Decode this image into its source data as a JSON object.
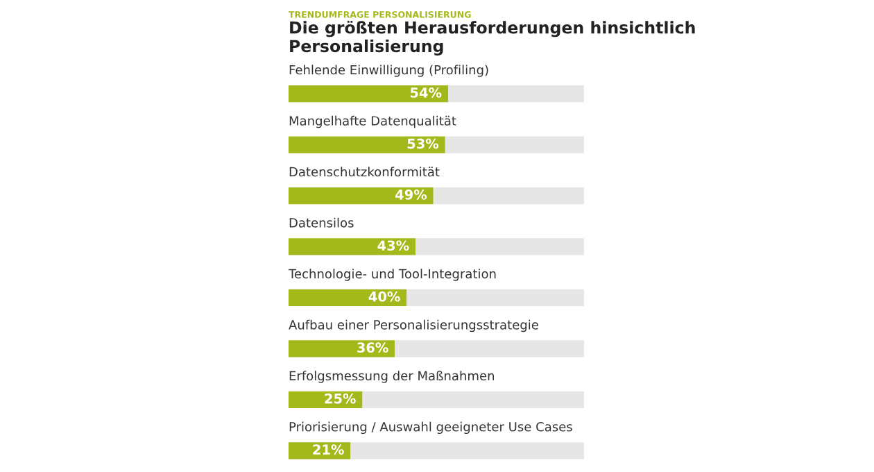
{
  "chart_data": {
    "type": "bar",
    "orientation": "horizontal",
    "stacked": true,
    "subtitle": "TRENDUMFRAGE PERSONALISIERUNG",
    "title": "Die größten Herausforderungen hinsichtlich Personalisierung",
    "categories": [
      "Fehlende Einwilligung (Profiling)",
      "Mangelhafte Datenqualität",
      "Datenschutzkonformität",
      "Datensilos",
      "Technologie- und Tool-Integration",
      "Aufbau einer Personalisierungsstrategie",
      "Erfolgsmessung der Maßnahmen",
      "Priorisierung / Auswahl geeigneter Use Cases"
    ],
    "series": [
      {
        "color": "#a3b81a",
        "values": [
          54,
          53,
          49,
          43,
          40,
          36,
          25,
          21
        ],
        "value_labels": [
          "54%",
          "53%",
          "49%",
          "43%",
          "40%",
          "36%",
          "25%",
          "21%"
        ]
      },
      {
        "color": "#e6e6e6",
        "values": [
          46,
          47,
          51,
          57,
          60,
          64,
          75,
          79
        ]
      }
    ],
    "xlim": [
      0,
      100
    ]
  }
}
